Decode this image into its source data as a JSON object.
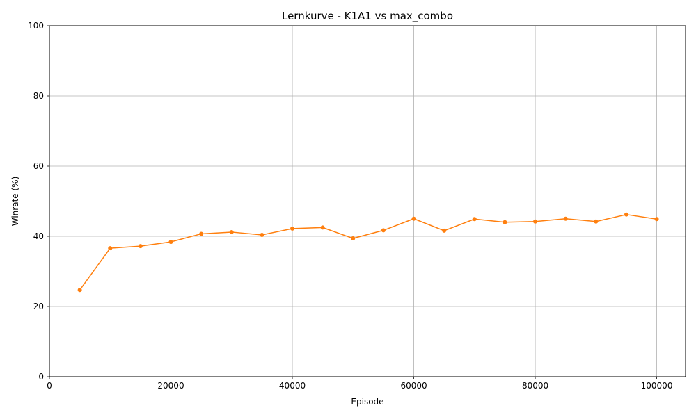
{
  "chart_data": {
    "type": "line",
    "title": "Lernkurve - K1A1 vs max_combo",
    "xlabel": "Episode",
    "ylabel": "Winrate (%)",
    "xlim": [
      0,
      104750
    ],
    "ylim": [
      0,
      100
    ],
    "x_ticks": [
      0,
      20000,
      40000,
      60000,
      80000,
      100000
    ],
    "y_ticks": [
      0,
      20,
      40,
      60,
      80,
      100
    ],
    "grid": true,
    "series": [
      {
        "color": "#ff7f0e",
        "marker": "circle",
        "x": [
          5000,
          10000,
          15000,
          20000,
          25000,
          30000,
          35000,
          40000,
          45000,
          50000,
          55000,
          60000,
          65000,
          70000,
          75000,
          80000,
          85000,
          90000,
          95000,
          100000
        ],
        "y": [
          24.7,
          36.6,
          37.2,
          38.4,
          40.7,
          41.2,
          40.4,
          42.2,
          42.5,
          39.4,
          41.7,
          45.0,
          41.6,
          44.9,
          44.0,
          44.2,
          45.0,
          44.2,
          46.2,
          44.9
        ]
      }
    ]
  }
}
